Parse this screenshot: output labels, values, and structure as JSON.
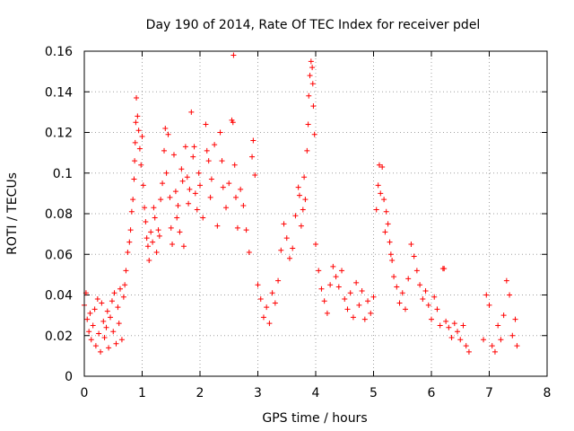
{
  "chart_data": {
    "type": "scatter",
    "title": "Day 190 of 2014, Rate Of TEC Index for receiver pdel",
    "xlabel": "GPS time / hours",
    "ylabel": "ROTI / TECUs",
    "xlim": [
      0,
      8
    ],
    "ylim": [
      0,
      0.16
    ],
    "x_ticks": [
      0,
      1,
      2,
      3,
      4,
      5,
      6,
      7,
      8
    ],
    "x_tick_labels": [
      "0",
      "1",
      "2",
      "3",
      "4",
      "5",
      "6",
      "7",
      "8"
    ],
    "y_ticks": [
      0,
      0.02,
      0.04,
      0.06,
      0.08,
      0.1,
      0.12,
      0.14,
      0.16
    ],
    "y_tick_labels": [
      "0",
      "0.02",
      "0.04",
      "0.06",
      "0.08",
      "0.1",
      "0.12",
      "0.14",
      "0.16"
    ],
    "grid": true,
    "marker": "plus",
    "color": "#ff0000",
    "series": [
      {
        "name": "ROTI",
        "points": [
          [
            0.0,
            0.035
          ],
          [
            0.03,
            0.041
          ],
          [
            0.05,
            0.028
          ],
          [
            0.08,
            0.022
          ],
          [
            0.1,
            0.031
          ],
          [
            0.12,
            0.018
          ],
          [
            0.15,
            0.025
          ],
          [
            0.18,
            0.033
          ],
          [
            0.2,
            0.015
          ],
          [
            0.23,
            0.038
          ],
          [
            0.25,
            0.021
          ],
          [
            0.28,
            0.012
          ],
          [
            0.3,
            0.036
          ],
          [
            0.33,
            0.027
          ],
          [
            0.35,
            0.019
          ],
          [
            0.38,
            0.024
          ],
          [
            0.4,
            0.032
          ],
          [
            0.42,
            0.014
          ],
          [
            0.45,
            0.029
          ],
          [
            0.48,
            0.037
          ],
          [
            0.5,
            0.022
          ],
          [
            0.52,
            0.041
          ],
          [
            0.55,
            0.016
          ],
          [
            0.58,
            0.034
          ],
          [
            0.6,
            0.026
          ],
          [
            0.62,
            0.043
          ],
          [
            0.65,
            0.018
          ],
          [
            0.68,
            0.039
          ],
          [
            0.7,
            0.045
          ],
          [
            0.72,
            0.052
          ],
          [
            0.75,
            0.061
          ],
          [
            0.78,
            0.066
          ],
          [
            0.8,
            0.072
          ],
          [
            0.82,
            0.081
          ],
          [
            0.84,
            0.087
          ],
          [
            0.86,
            0.097
          ],
          [
            0.87,
            0.106
          ],
          [
            0.88,
            0.115
          ],
          [
            0.89,
            0.125
          ],
          [
            0.9,
            0.137
          ],
          [
            0.92,
            0.128
          ],
          [
            0.94,
            0.121
          ],
          [
            0.96,
            0.112
          ],
          [
            0.98,
            0.104
          ],
          [
            1.0,
            0.118
          ],
          [
            1.02,
            0.094
          ],
          [
            1.04,
            0.083
          ],
          [
            1.06,
            0.076
          ],
          [
            1.08,
            0.068
          ],
          [
            1.1,
            0.064
          ],
          [
            1.12,
            0.057
          ],
          [
            1.15,
            0.071
          ],
          [
            1.18,
            0.066
          ],
          [
            1.2,
            0.083
          ],
          [
            1.22,
            0.078
          ],
          [
            1.25,
            0.061
          ],
          [
            1.28,
            0.072
          ],
          [
            1.3,
            0.069
          ],
          [
            1.32,
            0.087
          ],
          [
            1.35,
            0.095
          ],
          [
            1.38,
            0.111
          ],
          [
            1.4,
            0.122
          ],
          [
            1.42,
            0.1
          ],
          [
            1.45,
            0.119
          ],
          [
            1.48,
            0.088
          ],
          [
            1.5,
            0.073
          ],
          [
            1.52,
            0.065
          ],
          [
            1.55,
            0.109
          ],
          [
            1.58,
            0.091
          ],
          [
            1.6,
            0.078
          ],
          [
            1.62,
            0.084
          ],
          [
            1.65,
            0.071
          ],
          [
            1.68,
            0.102
          ],
          [
            1.7,
            0.096
          ],
          [
            1.72,
            0.064
          ],
          [
            1.75,
            0.113
          ],
          [
            1.78,
            0.098
          ],
          [
            1.8,
            0.085
          ],
          [
            1.82,
            0.092
          ],
          [
            1.85,
            0.13
          ],
          [
            1.88,
            0.108
          ],
          [
            1.9,
            0.113
          ],
          [
            1.92,
            0.09
          ],
          [
            1.95,
            0.082
          ],
          [
            1.98,
            0.1
          ],
          [
            2.0,
            0.094
          ],
          [
            2.05,
            0.078
          ],
          [
            2.1,
            0.124
          ],
          [
            2.12,
            0.111
          ],
          [
            2.15,
            0.106
          ],
          [
            2.18,
            0.088
          ],
          [
            2.2,
            0.097
          ],
          [
            2.25,
            0.114
          ],
          [
            2.3,
            0.074
          ],
          [
            2.35,
            0.12
          ],
          [
            2.38,
            0.106
          ],
          [
            2.4,
            0.093
          ],
          [
            2.45,
            0.083
          ],
          [
            2.5,
            0.095
          ],
          [
            2.55,
            0.126
          ],
          [
            2.57,
            0.125
          ],
          [
            2.58,
            0.158
          ],
          [
            2.6,
            0.104
          ],
          [
            2.62,
            0.088
          ],
          [
            2.65,
            0.073
          ],
          [
            2.7,
            0.092
          ],
          [
            2.75,
            0.084
          ],
          [
            2.8,
            0.072
          ],
          [
            2.85,
            0.061
          ],
          [
            2.9,
            0.108
          ],
          [
            2.92,
            0.116
          ],
          [
            2.95,
            0.099
          ],
          [
            3.0,
            0.045
          ],
          [
            3.05,
            0.038
          ],
          [
            3.1,
            0.029
          ],
          [
            3.15,
            0.034
          ],
          [
            3.2,
            0.026
          ],
          [
            3.25,
            0.041
          ],
          [
            3.3,
            0.036
          ],
          [
            3.35,
            0.047
          ],
          [
            3.4,
            0.062
          ],
          [
            3.45,
            0.075
          ],
          [
            3.5,
            0.068
          ],
          [
            3.55,
            0.058
          ],
          [
            3.6,
            0.063
          ],
          [
            3.65,
            0.079
          ],
          [
            3.7,
            0.093
          ],
          [
            3.72,
            0.089
          ],
          [
            3.75,
            0.074
          ],
          [
            3.78,
            0.082
          ],
          [
            3.8,
            0.098
          ],
          [
            3.82,
            0.087
          ],
          [
            3.85,
            0.111
          ],
          [
            3.87,
            0.124
          ],
          [
            3.88,
            0.138
          ],
          [
            3.9,
            0.148
          ],
          [
            3.92,
            0.155
          ],
          [
            3.94,
            0.152
          ],
          [
            3.95,
            0.144
          ],
          [
            3.96,
            0.133
          ],
          [
            3.98,
            0.119
          ],
          [
            4.0,
            0.065
          ],
          [
            4.05,
            0.052
          ],
          [
            4.1,
            0.043
          ],
          [
            4.15,
            0.037
          ],
          [
            4.2,
            0.031
          ],
          [
            4.25,
            0.045
          ],
          [
            4.3,
            0.054
          ],
          [
            4.35,
            0.049
          ],
          [
            4.4,
            0.044
          ],
          [
            4.45,
            0.052
          ],
          [
            4.5,
            0.038
          ],
          [
            4.55,
            0.033
          ],
          [
            4.6,
            0.041
          ],
          [
            4.65,
            0.029
          ],
          [
            4.7,
            0.046
          ],
          [
            4.75,
            0.035
          ],
          [
            4.8,
            0.042
          ],
          [
            4.85,
            0.028
          ],
          [
            4.9,
            0.037
          ],
          [
            4.95,
            0.031
          ],
          [
            5.0,
            0.039
          ],
          [
            5.05,
            0.082
          ],
          [
            5.08,
            0.094
          ],
          [
            5.1,
            0.104
          ],
          [
            5.12,
            0.09
          ],
          [
            5.15,
            0.103
          ],
          [
            5.18,
            0.087
          ],
          [
            5.2,
            0.071
          ],
          [
            5.22,
            0.081
          ],
          [
            5.25,
            0.075
          ],
          [
            5.28,
            0.066
          ],
          [
            5.3,
            0.06
          ],
          [
            5.32,
            0.057
          ],
          [
            5.35,
            0.049
          ],
          [
            5.4,
            0.044
          ],
          [
            5.45,
            0.036
          ],
          [
            5.5,
            0.041
          ],
          [
            5.55,
            0.033
          ],
          [
            5.6,
            0.048
          ],
          [
            5.65,
            0.065
          ],
          [
            5.7,
            0.059
          ],
          [
            5.75,
            0.052
          ],
          [
            5.8,
            0.045
          ],
          [
            5.85,
            0.038
          ],
          [
            5.9,
            0.042
          ],
          [
            5.95,
            0.035
          ],
          [
            6.0,
            0.028
          ],
          [
            6.05,
            0.039
          ],
          [
            6.1,
            0.033
          ],
          [
            6.15,
            0.025
          ],
          [
            6.2,
            0.053
          ],
          [
            6.22,
            0.053
          ],
          [
            6.25,
            0.027
          ],
          [
            6.3,
            0.024
          ],
          [
            6.35,
            0.019
          ],
          [
            6.4,
            0.026
          ],
          [
            6.45,
            0.022
          ],
          [
            6.5,
            0.018
          ],
          [
            6.55,
            0.025
          ],
          [
            6.6,
            0.015
          ],
          [
            6.65,
            0.012
          ],
          [
            6.9,
            0.018
          ],
          [
            6.95,
            0.04
          ],
          [
            7.0,
            0.035
          ],
          [
            7.05,
            0.015
          ],
          [
            7.1,
            0.012
          ],
          [
            7.15,
            0.025
          ],
          [
            7.2,
            0.018
          ],
          [
            7.25,
            0.03
          ],
          [
            7.3,
            0.047
          ],
          [
            7.35,
            0.04
          ],
          [
            7.4,
            0.02
          ],
          [
            7.45,
            0.028
          ],
          [
            7.48,
            0.015
          ]
        ]
      }
    ]
  }
}
